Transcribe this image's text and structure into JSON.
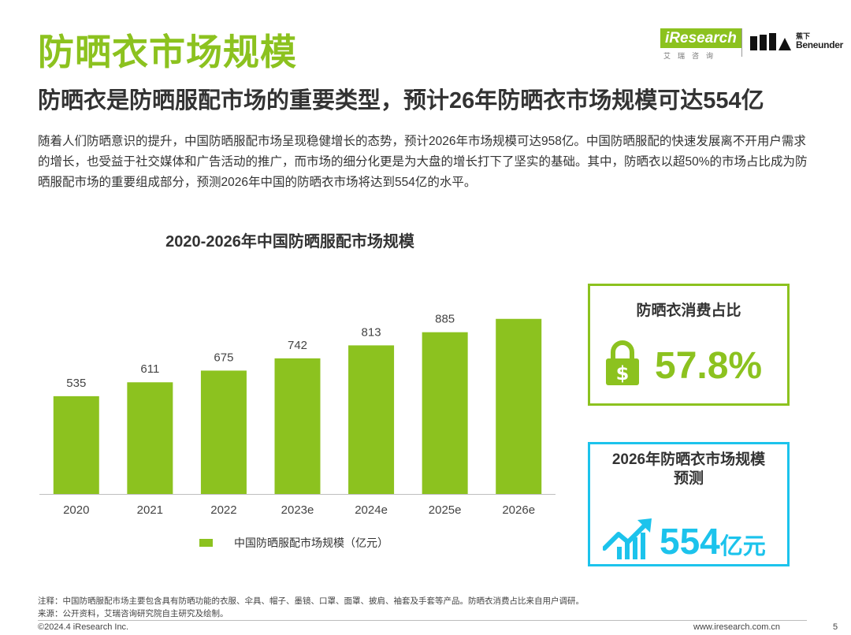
{
  "header": {
    "title": "防晒衣市场规模",
    "subtitle": "防晒衣是防晒服配市场的重要类型，预计26年防晒衣市场规模可达554亿",
    "logos": {
      "iresearch_word": "iResearch",
      "iresearch_sub": "艾瑞咨询",
      "beneunder_cn": "蕉下",
      "beneunder_en": "Beneunder"
    }
  },
  "intro_text": "随着人们防晒意识的提升，中国防晒服配市场呈现稳健增长的态势，预计2026年市场规模可达958亿。中国防晒服配的快速发展离不开用户需求的增长，也受益于社交媒体和广告活动的推广，而市场的细分化更是为大盘的增长打下了坚实的基础。其中，防晒衣以超50%的市场占比成为防晒服配市场的重要组成部分，预测2026年中国的防晒衣市场将达到554亿的水平。",
  "chart_data": {
    "type": "bar",
    "title": "2020-2026年中国防晒服配市场规模",
    "categories": [
      "2020",
      "2021",
      "2022",
      "2023e",
      "2024e",
      "2025e",
      "2026e"
    ],
    "series": [
      {
        "name": "中国防晒服配市场规模（亿元）",
        "values": [
          535,
          611,
          675,
          742,
          813,
          885,
          958
        ]
      }
    ],
    "ylim": [
      0,
      1000
    ],
    "grid": false,
    "legend_position": "bottom",
    "color": "#8cc21f"
  },
  "cards": {
    "share": {
      "caption": "防晒衣消费占比",
      "value": "57.8%",
      "icon": "lock-dollar-icon"
    },
    "forecast": {
      "caption_line1": "2026年防晒衣市场规模",
      "caption_line2": "预测",
      "value": "554",
      "unit": "亿元",
      "icon": "growth-chart-icon"
    }
  },
  "footer": {
    "note": "注释：中国防晒服配市场主要包含具有防晒功能的衣服、伞具、帽子、墨镜、口罩、面罩、披肩、袖套及手套等产品。防晒衣消费占比来自用户调研。",
    "source": "来源：公开资料，艾瑞咨询研究院自主研究及绘制。",
    "copyright": "©2024.4 iResearch Inc.",
    "website": "www.iresearch.com.cn",
    "page_number": "5"
  },
  "colors": {
    "brand_green": "#8cc21f",
    "accent_cyan": "#1cc3ec",
    "text": "#333333"
  }
}
